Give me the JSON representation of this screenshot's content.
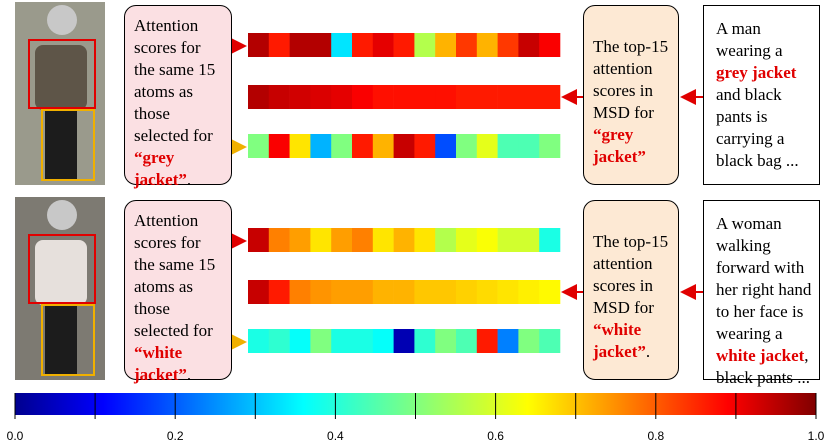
{
  "panels": [
    {
      "left_box": {
        "parts": [
          {
            "text": "Attention scores for the same 15 atoms as those selected for "
          },
          {
            "text": "“grey jacket”",
            "highlight": true
          },
          {
            "text": "."
          }
        ]
      },
      "strips": [
        [
          0.95,
          0.85,
          0.95,
          0.95,
          0.35,
          0.85,
          0.9,
          0.85,
          0.55,
          0.7,
          0.82,
          0.7,
          0.82,
          0.93,
          0.88
        ],
        [
          0.95,
          0.93,
          0.92,
          0.91,
          0.9,
          0.88,
          0.86,
          0.86,
          0.86,
          0.86,
          0.85,
          0.85,
          0.85,
          0.85,
          0.85
        ],
        [
          0.5,
          0.88,
          0.65,
          0.3,
          0.5,
          0.85,
          0.7,
          0.93,
          0.85,
          0.2,
          0.5,
          0.6,
          0.45,
          0.45,
          0.5
        ]
      ],
      "middle_box": {
        "parts": [
          {
            "text": "The top-15 attention scores in MSD for "
          },
          {
            "text": "“grey jacket”",
            "highlight": true
          }
        ]
      },
      "right_box": {
        "parts": [
          {
            "text": "A man wearing a "
          },
          {
            "text": "grey jacket",
            "highlight": true
          },
          {
            "text": " and black pants is carrying a black bag ..."
          }
        ]
      }
    },
    {
      "left_box": {
        "parts": [
          {
            "text": "Attention scores for the same 15 atoms as those selected for "
          },
          {
            "text": "“white jacket”",
            "highlight": true
          },
          {
            "text": "."
          }
        ]
      },
      "strips": [
        [
          0.93,
          0.75,
          0.72,
          0.65,
          0.72,
          0.75,
          0.65,
          0.7,
          0.65,
          0.55,
          0.6,
          0.62,
          0.58,
          0.58,
          0.4
        ],
        [
          0.93,
          0.85,
          0.75,
          0.73,
          0.72,
          0.72,
          0.7,
          0.7,
          0.68,
          0.68,
          0.67,
          0.66,
          0.65,
          0.64,
          0.63
        ],
        [
          0.4,
          0.42,
          0.38,
          0.5,
          0.4,
          0.4,
          0.38,
          0.05,
          0.42,
          0.5,
          0.45,
          0.85,
          0.25,
          0.5,
          0.45
        ]
      ],
      "middle_box": {
        "parts": [
          {
            "text": "The top-15 attention scores in MSD for "
          },
          {
            "text": "“white jacket”",
            "highlight": true
          },
          {
            "text": "."
          }
        ]
      },
      "right_box": {
        "parts": [
          {
            "text": "A woman walking forward with her right hand to her face is wearing a "
          },
          {
            "text": "white jacket",
            "highlight": true
          },
          {
            "text": ", black pants ..."
          }
        ]
      }
    }
  ],
  "colorbar": {
    "clim": [
      0,
      1
    ],
    "ticks": [
      {
        "value": 0,
        "label": "0.0"
      },
      {
        "value": 0.2,
        "label": "0.2"
      },
      {
        "value": 0.4,
        "label": "0.4"
      },
      {
        "value": 0.6,
        "label": "0.6"
      },
      {
        "value": 0.8,
        "label": "0.8"
      },
      {
        "value": 1,
        "label": "1.0"
      }
    ],
    "minor_ticks": [
      0.1,
      0.3,
      0.5,
      0.7,
      0.9
    ]
  }
}
